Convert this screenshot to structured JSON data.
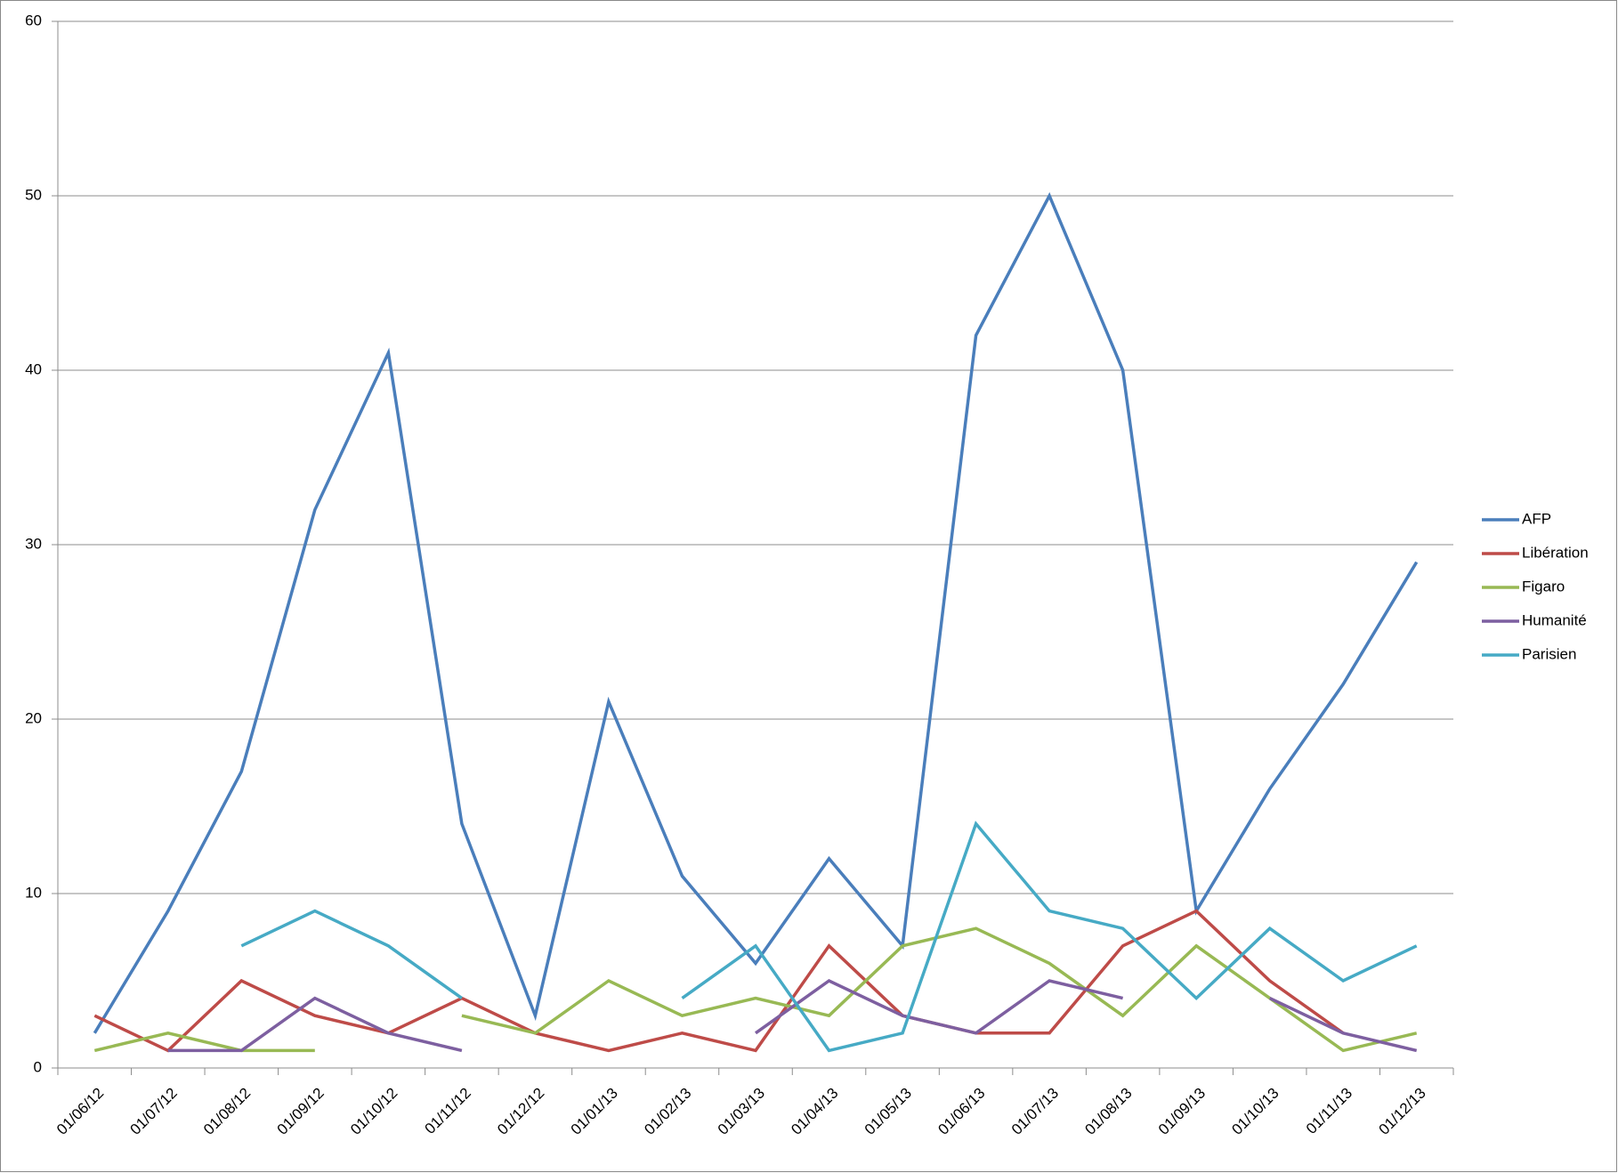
{
  "chart_data": {
    "type": "line",
    "categories": [
      "01/06/12",
      "01/07/12",
      "01/08/12",
      "01/09/12",
      "01/10/12",
      "01/11/12",
      "01/12/12",
      "01/01/13",
      "01/02/13",
      "01/03/13",
      "01/04/13",
      "01/05/13",
      "01/06/13",
      "01/07/13",
      "01/08/13",
      "01/09/13",
      "01/10/13",
      "01/11/13",
      "01/12/13"
    ],
    "series": [
      {
        "name": "AFP",
        "color": "#4a7ebb",
        "values": [
          2,
          9,
          17,
          32,
          41,
          14,
          3,
          21,
          11,
          6,
          12,
          7,
          42,
          50,
          40,
          9,
          16,
          22,
          29
        ]
      },
      {
        "name": "Libération",
        "color": "#be4b48",
        "values": [
          3,
          1,
          5,
          3,
          2,
          4,
          2,
          1,
          2,
          1,
          7,
          3,
          2,
          2,
          7,
          9,
          5,
          2,
          null
        ]
      },
      {
        "name": "Figaro",
        "color": "#98b954",
        "values": [
          1,
          2,
          1,
          1,
          null,
          3,
          2,
          5,
          3,
          4,
          3,
          7,
          8,
          6,
          3,
          7,
          4,
          1,
          2
        ]
      },
      {
        "name": "Humanité",
        "color": "#7d5fa0",
        "values": [
          null,
          1,
          1,
          4,
          2,
          1,
          null,
          null,
          null,
          2,
          5,
          3,
          2,
          5,
          4,
          null,
          4,
          2,
          1
        ]
      },
      {
        "name": "Parisien",
        "color": "#46aac5",
        "values": [
          null,
          null,
          7,
          9,
          7,
          4,
          null,
          null,
          4,
          7,
          1,
          2,
          14,
          9,
          8,
          4,
          8,
          5,
          7
        ]
      }
    ],
    "ylim": [
      0,
      60
    ],
    "yticks": [
      0,
      10,
      20,
      30,
      40,
      50,
      60
    ],
    "grid": true,
    "legend": "right"
  }
}
